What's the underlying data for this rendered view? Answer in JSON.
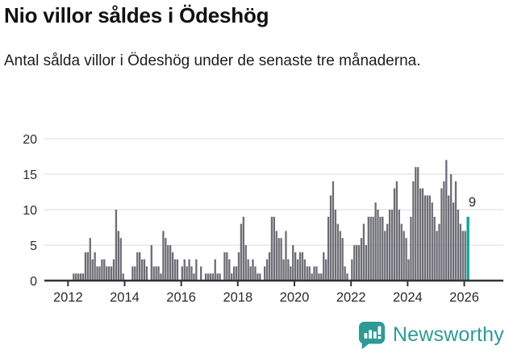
{
  "title": "Nio villor såldes i Ödeshög",
  "subtitle": "Antal sålda villor i Ödeshög under de senaste tre månaderna.",
  "colors": {
    "bar": "#6C6C74",
    "highlight": "#14A39C",
    "grid": "#E2E2E2",
    "axis": "#333333",
    "text": "#222222",
    "brand": "#2E9A96"
  },
  "branding": {
    "name": "Newsworthy",
    "icon": "newsworthy-speech-bubble-bar-chart-icon"
  },
  "chart_data": {
    "type": "bar",
    "title": "Nio villor såldes i Ödeshög",
    "subtitle": "Antal sålda villor i Ödeshög under de senaste tre månaderna.",
    "ylabel": "",
    "xlabel": "",
    "frequency": "monthly",
    "x_start": "2012-01",
    "x_end": "2026-02",
    "x_tick_labels": [
      "2012",
      "2014",
      "2016",
      "2018",
      "2020",
      "2022",
      "2024",
      "2026"
    ],
    "y_ticks": [
      0,
      5,
      10,
      15,
      20
    ],
    "ylim": [
      0,
      20
    ],
    "grid": "horizontal",
    "legend": "none",
    "highlight_last": true,
    "last_value_label": "9",
    "values": [
      0,
      0,
      1,
      1,
      1,
      1,
      1,
      4,
      4,
      6,
      3,
      4,
      2,
      2,
      3,
      3,
      2,
      2,
      2,
      3,
      10,
      7,
      6,
      1,
      0,
      0,
      0,
      2,
      2,
      4,
      4,
      3,
      3,
      2,
      0,
      5,
      2,
      2,
      2,
      1,
      7,
      6,
      5,
      5,
      4,
      3,
      3,
      0,
      2,
      3,
      2,
      3,
      2,
      1,
      3,
      0,
      2,
      0,
      1,
      1,
      1,
      1,
      3,
      1,
      1,
      0,
      4,
      4,
      3,
      1,
      2,
      2,
      4,
      8,
      9,
      5,
      3,
      2,
      3,
      2,
      1,
      1,
      0,
      2,
      3,
      4,
      9,
      9,
      7,
      6,
      6,
      3,
      7,
      3,
      2,
      5,
      4,
      3,
      4,
      4,
      3,
      2,
      2,
      1,
      2,
      2,
      1,
      1,
      4,
      3,
      9,
      12,
      14,
      10,
      8,
      7,
      6,
      2,
      1,
      0,
      3,
      5,
      5,
      5,
      6,
      8,
      5,
      9,
      9,
      9,
      11,
      10,
      9,
      9,
      7,
      8,
      10,
      10,
      13,
      14,
      10,
      8,
      7,
      6,
      3,
      9,
      14,
      16,
      16,
      13,
      13,
      12,
      12,
      12,
      11,
      9,
      7,
      8,
      13,
      14,
      17,
      12,
      15,
      11,
      14,
      10,
      8,
      7,
      7,
      9
    ]
  }
}
